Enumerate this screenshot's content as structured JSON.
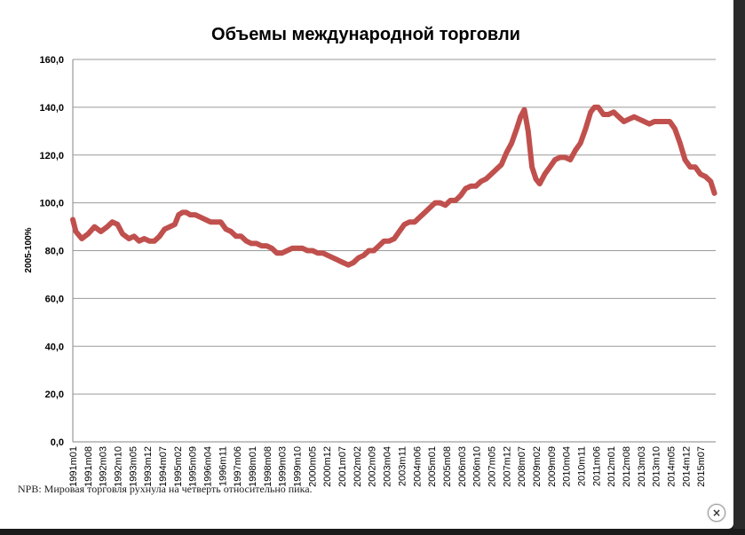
{
  "caption": "NPB: Мировая торговля рухнула на четверть относительно пика.",
  "close_label": "×",
  "chart_data": {
    "type": "line",
    "title": "Объемы международной торговли",
    "ylabel": "2005-100%",
    "xlabel": "",
    "ylim": [
      0,
      160
    ],
    "yticks": [
      "0,0",
      "20,0",
      "40,0",
      "60,0",
      "80,0",
      "100,0",
      "120,0",
      "140,0",
      "160,0"
    ],
    "grid": true,
    "legend": "none",
    "line_color": "#c0504d",
    "xticks": [
      "1991m01",
      "1991m08",
      "1992m03",
      "1992m10",
      "1993m05",
      "1993m12",
      "1994m07",
      "1995m02",
      "1995m09",
      "1996m04",
      "1996m11",
      "1997m06",
      "1998m01",
      "1998m08",
      "1999m03",
      "1999m10",
      "2000m05",
      "2000m12",
      "2001m07",
      "2002m02",
      "2002m09",
      "2003m04",
      "2003m11",
      "2004m06",
      "2005m01",
      "2005m08",
      "2006m03",
      "2006m10",
      "2007m05",
      "2007m12",
      "2008m07",
      "2009m02",
      "2009m09",
      "2010m04",
      "2010m11",
      "2011m06",
      "2012m01",
      "2012m08",
      "2013m03",
      "2013m10",
      "2014m05",
      "2014m12",
      "2015m07"
    ],
    "series": [
      {
        "values": [
          [
            1991.0,
            93
          ],
          [
            1991.12,
            88
          ],
          [
            1991.35,
            85
          ],
          [
            1991.6,
            87
          ],
          [
            1991.85,
            90
          ],
          [
            1992.1,
            88
          ],
          [
            1992.35,
            90
          ],
          [
            1992.55,
            92
          ],
          [
            1992.75,
            91
          ],
          [
            1992.95,
            87
          ],
          [
            1993.2,
            85
          ],
          [
            1993.4,
            86
          ],
          [
            1993.6,
            84
          ],
          [
            1993.8,
            85
          ],
          [
            1994.0,
            84
          ],
          [
            1994.2,
            84
          ],
          [
            1994.4,
            86
          ],
          [
            1994.6,
            89
          ],
          [
            1994.8,
            90
          ],
          [
            1995.0,
            91
          ],
          [
            1995.15,
            95
          ],
          [
            1995.3,
            96
          ],
          [
            1995.45,
            96
          ],
          [
            1995.6,
            95
          ],
          [
            1995.8,
            95
          ],
          [
            1996.0,
            94
          ],
          [
            1996.2,
            93
          ],
          [
            1996.4,
            92
          ],
          [
            1996.6,
            92
          ],
          [
            1996.8,
            92
          ],
          [
            1997.0,
            89
          ],
          [
            1997.2,
            88
          ],
          [
            1997.4,
            86
          ],
          [
            1997.6,
            86
          ],
          [
            1997.8,
            84
          ],
          [
            1998.0,
            83
          ],
          [
            1998.2,
            83
          ],
          [
            1998.4,
            82
          ],
          [
            1998.6,
            82
          ],
          [
            1998.8,
            81
          ],
          [
            1999.0,
            79
          ],
          [
            1999.2,
            79
          ],
          [
            1999.4,
            80
          ],
          [
            1999.6,
            81
          ],
          [
            1999.8,
            81
          ],
          [
            2000.0,
            81
          ],
          [
            2000.2,
            80
          ],
          [
            2000.4,
            80
          ],
          [
            2000.6,
            79
          ],
          [
            2000.8,
            79
          ],
          [
            2001.0,
            78
          ],
          [
            2001.2,
            77
          ],
          [
            2001.4,
            76
          ],
          [
            2001.6,
            75
          ],
          [
            2001.8,
            74
          ],
          [
            2002.0,
            75
          ],
          [
            2002.2,
            77
          ],
          [
            2002.4,
            78
          ],
          [
            2002.6,
            80
          ],
          [
            2002.8,
            80
          ],
          [
            2003.0,
            82
          ],
          [
            2003.2,
            84
          ],
          [
            2003.4,
            84
          ],
          [
            2003.6,
            85
          ],
          [
            2003.8,
            88
          ],
          [
            2004.0,
            91
          ],
          [
            2004.2,
            92
          ],
          [
            2004.4,
            92
          ],
          [
            2004.6,
            94
          ],
          [
            2004.8,
            96
          ],
          [
            2005.0,
            98
          ],
          [
            2005.2,
            100
          ],
          [
            2005.4,
            100
          ],
          [
            2005.6,
            99
          ],
          [
            2005.8,
            101
          ],
          [
            2006.0,
            101
          ],
          [
            2006.2,
            103
          ],
          [
            2006.4,
            106
          ],
          [
            2006.6,
            107
          ],
          [
            2006.8,
            107
          ],
          [
            2007.0,
            109
          ],
          [
            2007.2,
            110
          ],
          [
            2007.4,
            112
          ],
          [
            2007.6,
            114
          ],
          [
            2007.8,
            116
          ],
          [
            2008.0,
            121
          ],
          [
            2008.2,
            125
          ],
          [
            2008.4,
            131
          ],
          [
            2008.55,
            136
          ],
          [
            2008.7,
            139
          ],
          [
            2008.85,
            130
          ],
          [
            2009.0,
            115
          ],
          [
            2009.15,
            110
          ],
          [
            2009.3,
            108
          ],
          [
            2009.5,
            112
          ],
          [
            2009.7,
            115
          ],
          [
            2009.9,
            118
          ],
          [
            2010.1,
            119
          ],
          [
            2010.3,
            119
          ],
          [
            2010.5,
            118
          ],
          [
            2010.7,
            122
          ],
          [
            2010.9,
            125
          ],
          [
            2011.1,
            131
          ],
          [
            2011.3,
            138
          ],
          [
            2011.45,
            140
          ],
          [
            2011.6,
            140
          ],
          [
            2011.8,
            137
          ],
          [
            2012.0,
            137
          ],
          [
            2012.2,
            138
          ],
          [
            2012.4,
            136
          ],
          [
            2012.6,
            134
          ],
          [
            2012.8,
            135
          ],
          [
            2013.0,
            136
          ],
          [
            2013.2,
            135
          ],
          [
            2013.4,
            134
          ],
          [
            2013.6,
            133
          ],
          [
            2013.8,
            134
          ],
          [
            2014.0,
            134
          ],
          [
            2014.2,
            134
          ],
          [
            2014.4,
            134
          ],
          [
            2014.6,
            131
          ],
          [
            2014.8,
            125
          ],
          [
            2015.0,
            118
          ],
          [
            2015.2,
            115
          ],
          [
            2015.4,
            115
          ],
          [
            2015.6,
            112
          ],
          [
            2015.8,
            111
          ],
          [
            2016.0,
            109
          ],
          [
            2016.15,
            104
          ]
        ]
      }
    ]
  }
}
